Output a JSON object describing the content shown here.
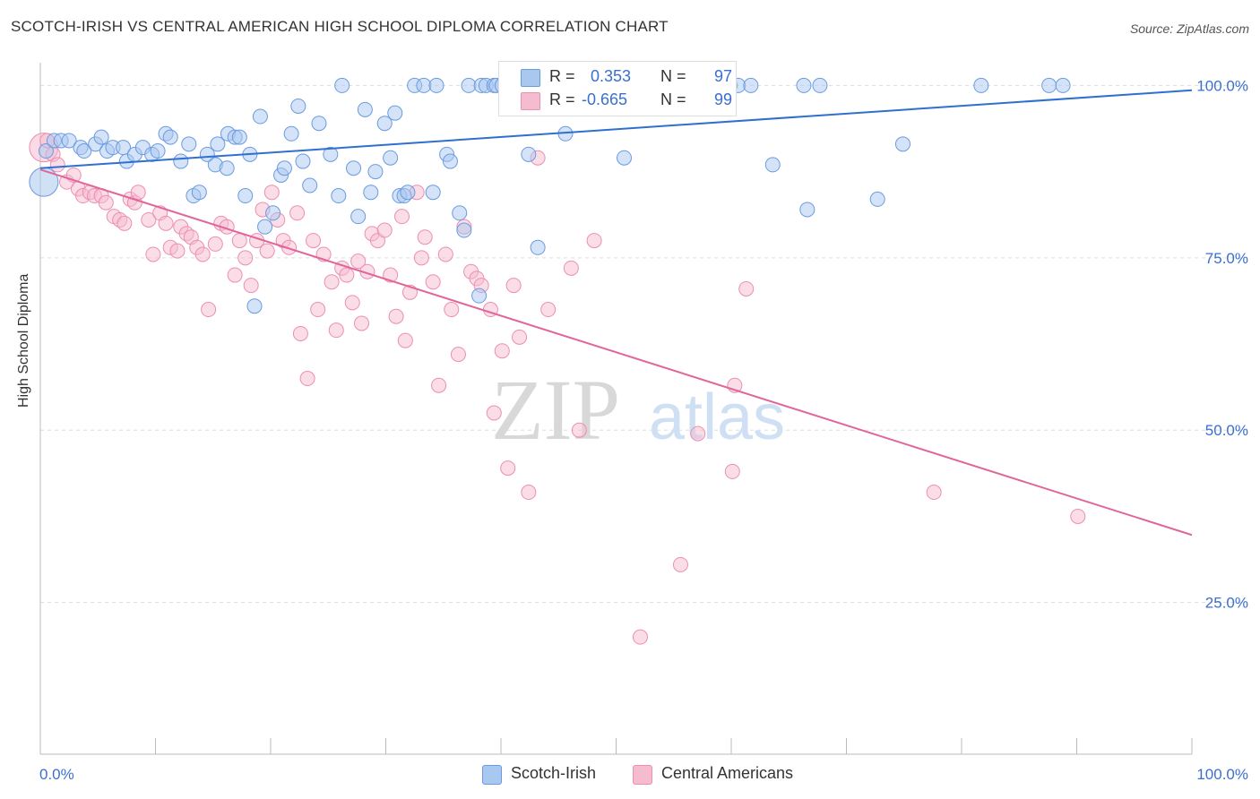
{
  "header": {
    "title": "SCOTCH-IRISH VS CENTRAL AMERICAN HIGH SCHOOL DIPLOMA CORRELATION CHART",
    "source": "Source: ZipAtlas.com"
  },
  "watermark": {
    "zip": "ZIP",
    "atlas": "atlas"
  },
  "legend": {
    "r_label": "R =",
    "n_label": "N =",
    "series1": {
      "r": "0.353",
      "n": "97"
    },
    "series2": {
      "r": "-0.665",
      "n": "99"
    }
  },
  "bottom_legend": {
    "series1": "Scotch-Irish",
    "series2": "Central Americans"
  },
  "colors": {
    "blue_fill": "#a9c8ef",
    "blue_stroke": "#6a9be0",
    "blue_line": "#2f6fd0",
    "pink_fill": "#f5bcd0",
    "pink_stroke": "#ec8fb0",
    "pink_line": "#e0669a",
    "tick_label": "#3a6fd0",
    "grid": "#dddddd"
  },
  "chart_data": {
    "type": "scatter",
    "title": "SCOTCH-IRISH VS CENTRAL AMERICAN HIGH SCHOOL DIPLOMA CORRELATION CHART",
    "xlabel": "",
    "ylabel": "High School Diploma",
    "xlim": [
      0,
      100
    ],
    "ylim": [
      3,
      102
    ],
    "x_tick_labels": [
      "0.0%",
      "100.0%"
    ],
    "y_ticks": [
      25,
      50,
      75,
      100
    ],
    "y_tick_labels": [
      "25.0%",
      "50.0%",
      "75.0%",
      "100.0%"
    ],
    "grid": "horizontal dashed",
    "legend_position": "top-center",
    "series": [
      {
        "name": "Scotch-Irish",
        "r": 0.353,
        "n": 97,
        "trend": [
          [
            0,
            88.0
          ],
          [
            100,
            99.3
          ]
        ],
        "points": [
          [
            0.3,
            86
          ],
          [
            0.5,
            90.5
          ],
          [
            1.2,
            92
          ],
          [
            1.8,
            92
          ],
          [
            2.5,
            92
          ],
          [
            3.5,
            91
          ],
          [
            3.8,
            90.5
          ],
          [
            4.8,
            91.5
          ],
          [
            5.3,
            92.5
          ],
          [
            5.8,
            90.5
          ],
          [
            6.3,
            91
          ],
          [
            7.2,
            91
          ],
          [
            7.5,
            89
          ],
          [
            8.2,
            90
          ],
          [
            8.9,
            91
          ],
          [
            9.7,
            90
          ],
          [
            10.2,
            90.5
          ],
          [
            10.9,
            93
          ],
          [
            11.3,
            92.5
          ],
          [
            12.2,
            89
          ],
          [
            12.9,
            91.5
          ],
          [
            13.3,
            84
          ],
          [
            13.8,
            84.5
          ],
          [
            14.5,
            90
          ],
          [
            15.2,
            88.5
          ],
          [
            15.4,
            91.5
          ],
          [
            16.2,
            88
          ],
          [
            16.3,
            93
          ],
          [
            16.9,
            92.5
          ],
          [
            17.3,
            92.5
          ],
          [
            17.8,
            84
          ],
          [
            18.2,
            90
          ],
          [
            18.6,
            68
          ],
          [
            19.1,
            95.5
          ],
          [
            19.5,
            79.5
          ],
          [
            20.2,
            81.5
          ],
          [
            20.9,
            87
          ],
          [
            21.2,
            88
          ],
          [
            21.8,
            93
          ],
          [
            22.4,
            97
          ],
          [
            22.8,
            89
          ],
          [
            23.4,
            85.5
          ],
          [
            24.2,
            94.5
          ],
          [
            25.2,
            90
          ],
          [
            25.9,
            84
          ],
          [
            26.2,
            100
          ],
          [
            27.2,
            88
          ],
          [
            27.6,
            81
          ],
          [
            28.2,
            96.5
          ],
          [
            28.7,
            84.5
          ],
          [
            29.1,
            87.5
          ],
          [
            29.9,
            94.5
          ],
          [
            30.4,
            89.5
          ],
          [
            30.8,
            96
          ],
          [
            31.2,
            84
          ],
          [
            31.6,
            84
          ],
          [
            31.9,
            84.5
          ],
          [
            32.5,
            100
          ],
          [
            33.3,
            100
          ],
          [
            34.1,
            84.5
          ],
          [
            34.4,
            100
          ],
          [
            35.3,
            90
          ],
          [
            35.6,
            89
          ],
          [
            36.4,
            81.5
          ],
          [
            36.8,
            79
          ],
          [
            37.2,
            100
          ],
          [
            38.1,
            69.5
          ],
          [
            38.3,
            100
          ],
          [
            38.7,
            100
          ],
          [
            39.4,
            100
          ],
          [
            39.6,
            100
          ],
          [
            40.1,
            100
          ],
          [
            42.4,
            90
          ],
          [
            43.2,
            76.5
          ],
          [
            44.8,
            100
          ],
          [
            45.3,
            100
          ],
          [
            45.6,
            93
          ],
          [
            46.2,
            100
          ],
          [
            49.2,
            100
          ],
          [
            50.3,
            100
          ],
          [
            50.7,
            89.5
          ],
          [
            52.2,
            100
          ],
          [
            54.2,
            100
          ],
          [
            56.4,
            100
          ],
          [
            57.1,
            100
          ],
          [
            58.2,
            100
          ],
          [
            59.9,
            100
          ],
          [
            60.6,
            100
          ],
          [
            61.7,
            100
          ],
          [
            63.6,
            88.5
          ],
          [
            66.3,
            100
          ],
          [
            66.6,
            82
          ],
          [
            67.7,
            100
          ],
          [
            72.7,
            83.5
          ],
          [
            74.9,
            91.5
          ],
          [
            81.7,
            100
          ],
          [
            87.6,
            100
          ],
          [
            88.8,
            100
          ]
        ]
      },
      {
        "name": "Central Americans",
        "r": -0.665,
        "n": 99,
        "trend": [
          [
            0,
            87.8
          ],
          [
            100,
            34.8
          ]
        ],
        "points": [
          [
            0.3,
            91
          ],
          [
            0.6,
            92
          ],
          [
            1.1,
            90
          ],
          [
            1.5,
            88.5
          ],
          [
            2.3,
            86
          ],
          [
            2.9,
            87
          ],
          [
            3.3,
            85
          ],
          [
            3.7,
            84
          ],
          [
            4.3,
            84.5
          ],
          [
            4.7,
            84
          ],
          [
            5.3,
            84
          ],
          [
            5.7,
            83
          ],
          [
            6.4,
            81
          ],
          [
            6.9,
            80.5
          ],
          [
            7.3,
            80
          ],
          [
            7.8,
            83.5
          ],
          [
            8.2,
            83
          ],
          [
            8.5,
            84.5
          ],
          [
            9.4,
            80.5
          ],
          [
            9.8,
            75.5
          ],
          [
            10.4,
            81.5
          ],
          [
            10.9,
            80
          ],
          [
            11.3,
            76.5
          ],
          [
            11.9,
            76
          ],
          [
            12.2,
            79.5
          ],
          [
            12.7,
            78.5
          ],
          [
            13.1,
            78
          ],
          [
            13.6,
            76.5
          ],
          [
            14.1,
            75.5
          ],
          [
            14.6,
            67.5
          ],
          [
            15.2,
            77
          ],
          [
            15.7,
            80
          ],
          [
            16.2,
            79.5
          ],
          [
            16.9,
            72.5
          ],
          [
            17.3,
            77.5
          ],
          [
            17.8,
            75
          ],
          [
            18.3,
            71
          ],
          [
            18.8,
            77.5
          ],
          [
            19.3,
            82
          ],
          [
            19.7,
            76
          ],
          [
            20.1,
            84.5
          ],
          [
            20.6,
            80.5
          ],
          [
            21.1,
            77.5
          ],
          [
            21.6,
            76.5
          ],
          [
            22.3,
            81.5
          ],
          [
            22.6,
            64
          ],
          [
            23.2,
            57.5
          ],
          [
            23.7,
            77.5
          ],
          [
            24.1,
            67.5
          ],
          [
            24.6,
            75.5
          ],
          [
            25.3,
            71.5
          ],
          [
            25.7,
            64.5
          ],
          [
            26.2,
            73.5
          ],
          [
            26.6,
            72.5
          ],
          [
            27.1,
            68.5
          ],
          [
            27.6,
            74.5
          ],
          [
            27.9,
            65.5
          ],
          [
            28.4,
            73
          ],
          [
            28.8,
            78.5
          ],
          [
            29.3,
            77.5
          ],
          [
            29.9,
            79
          ],
          [
            30.4,
            72.5
          ],
          [
            30.9,
            66.5
          ],
          [
            31.4,
            81
          ],
          [
            31.7,
            63
          ],
          [
            32.1,
            70
          ],
          [
            32.7,
            84.5
          ],
          [
            33.1,
            75
          ],
          [
            33.4,
            78
          ],
          [
            34.1,
            71.5
          ],
          [
            34.6,
            56.5
          ],
          [
            35.2,
            75.5
          ],
          [
            35.7,
            67.5
          ],
          [
            36.3,
            61
          ],
          [
            36.8,
            79.5
          ],
          [
            37.4,
            73
          ],
          [
            37.9,
            72
          ],
          [
            38.3,
            71
          ],
          [
            39.1,
            67.5
          ],
          [
            39.4,
            52.5
          ],
          [
            40.1,
            61.5
          ],
          [
            40.6,
            44.5
          ],
          [
            41.1,
            71
          ],
          [
            41.6,
            63.5
          ],
          [
            42.4,
            41
          ],
          [
            43.2,
            89.5
          ],
          [
            44.1,
            67.5
          ],
          [
            46.1,
            73.5
          ],
          [
            46.8,
            50
          ],
          [
            48.1,
            77.5
          ],
          [
            52.1,
            20
          ],
          [
            55.6,
            30.5
          ],
          [
            57.1,
            49.5
          ],
          [
            60.1,
            44
          ],
          [
            60.3,
            56.5
          ],
          [
            61.3,
            70.5
          ],
          [
            77.6,
            41
          ],
          [
            90.1,
            37.5
          ]
        ]
      }
    ]
  }
}
